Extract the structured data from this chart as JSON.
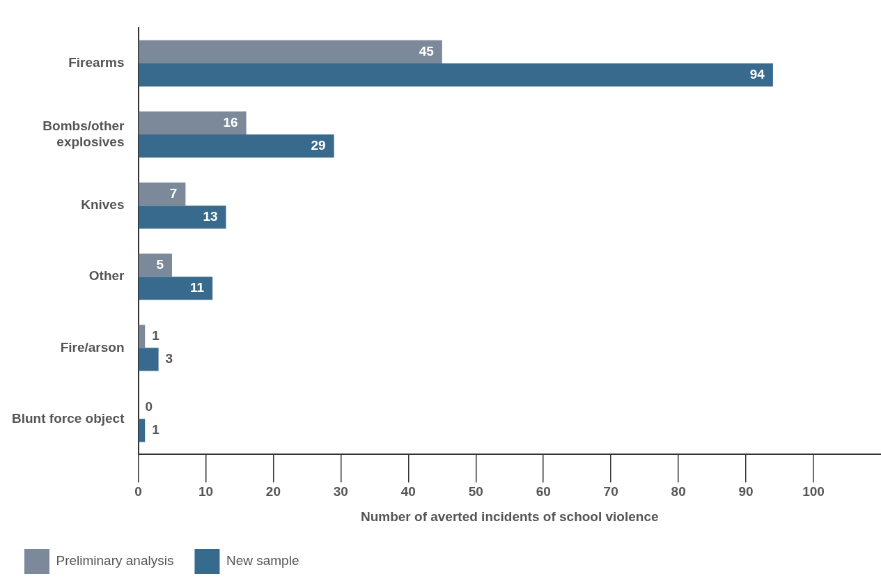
{
  "chart_data": {
    "type": "bar",
    "orientation": "horizontal",
    "xlabel": "Number of averted incidents of school violence",
    "categories": [
      "Firearms",
      "Bombs/other explosives",
      "Knives",
      "Other",
      "Fire/arson",
      "Blunt force object"
    ],
    "series": [
      {
        "name": "Preliminary analysis",
        "color": "#7b899b",
        "values": [
          45,
          16,
          7,
          5,
          1,
          0
        ]
      },
      {
        "name": "New sample",
        "color": "#386a8d",
        "values": [
          94,
          29,
          13,
          11,
          3,
          1
        ]
      }
    ],
    "xlim": [
      0,
      110
    ],
    "xticks": [
      0,
      10,
      20,
      30,
      40,
      50,
      60,
      70,
      80,
      90,
      100
    ],
    "grid": false,
    "legend": "bottom left",
    "data_labels": true
  }
}
